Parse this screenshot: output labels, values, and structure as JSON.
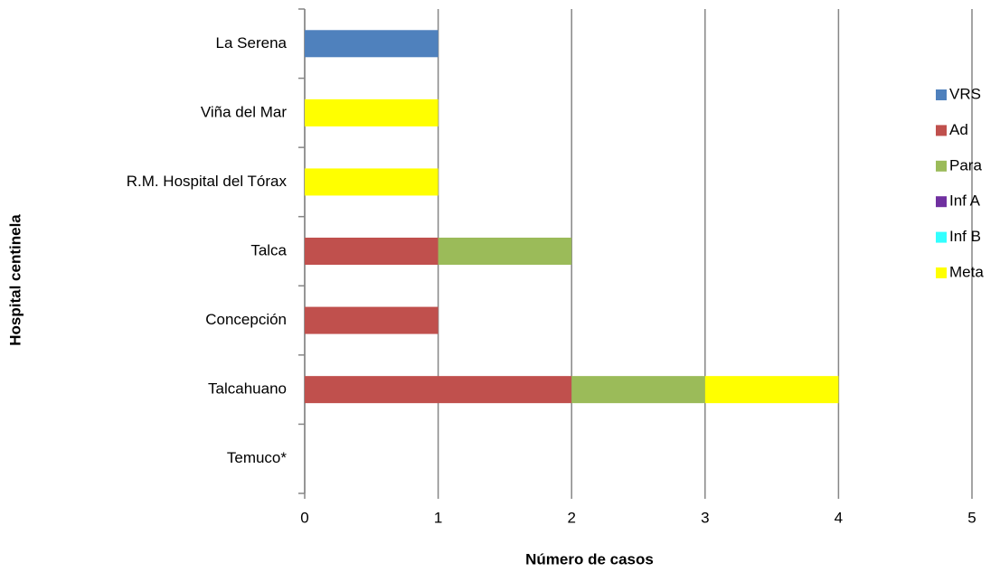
{
  "chart_data": {
    "type": "bar",
    "orientation": "horizontal",
    "stacked": true,
    "x_label": "Número de casos",
    "y_label": "Hospital centinela",
    "categories": [
      "La Serena",
      "Viña del Mar",
      "R.M. Hospital del Tórax",
      "Talca",
      "Concepción",
      "Talcahuano",
      "Temuco*"
    ],
    "series": [
      {
        "name": "VRS",
        "color": "#4f81bd",
        "values": [
          1,
          0,
          0,
          0,
          0,
          0,
          0
        ]
      },
      {
        "name": "Ad",
        "color": "#c0504d",
        "values": [
          0,
          0,
          0,
          1,
          1,
          2,
          0
        ]
      },
      {
        "name": "Para",
        "color": "#9bbb59",
        "values": [
          0,
          0,
          0,
          1,
          0,
          1,
          0
        ]
      },
      {
        "name": "Inf A",
        "color": "#7030a0",
        "values": [
          0,
          0,
          0,
          0,
          0,
          0,
          0
        ]
      },
      {
        "name": "Inf B",
        "color": "#33ffff",
        "values": [
          0,
          0,
          0,
          0,
          0,
          0,
          0
        ]
      },
      {
        "name": "Meta",
        "color": "#ffff00",
        "values": [
          0,
          1,
          1,
          0,
          0,
          1,
          0
        ]
      }
    ],
    "xlim": [
      0,
      5
    ],
    "xticks": [
      0,
      1,
      2,
      3,
      4,
      5
    ],
    "grid": true,
    "legend": "right"
  }
}
